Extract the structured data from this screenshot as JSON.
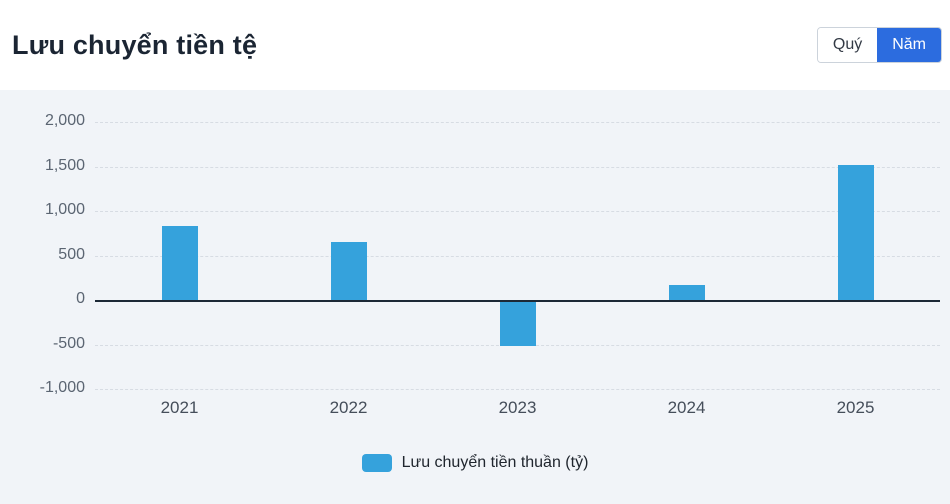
{
  "header": {
    "title": "Lưu chuyển tiền tệ",
    "toggle": {
      "quarter_label": "Quý",
      "year_label": "Năm",
      "active": "Năm"
    }
  },
  "colors": {
    "bar": "#35a2dc",
    "active_button": "#2c6cdf",
    "zero_line": "#1c2936"
  },
  "chart_data": {
    "type": "bar",
    "title": "Lưu chuyển tiền tệ",
    "categories": [
      "2021",
      "2022",
      "2023",
      "2024",
      "2025"
    ],
    "series": [
      {
        "name": "Lưu chuyển tiền thuần (tỷ)",
        "values": [
          830,
          650,
          -520,
          170,
          1520
        ]
      }
    ],
    "ylim": [
      -1000,
      2000
    ],
    "yticks": [
      2000,
      1500,
      1000,
      500,
      0,
      -500,
      -1000
    ],
    "ytick_labels": [
      "2,000",
      "1,500",
      "1,000",
      "500",
      "0",
      "-500",
      "-1,000"
    ],
    "grid": "horizontal dashed",
    "legend_position": "bottom"
  },
  "legend": {
    "label": "Lưu chuyển tiền thuần (tỷ)"
  }
}
